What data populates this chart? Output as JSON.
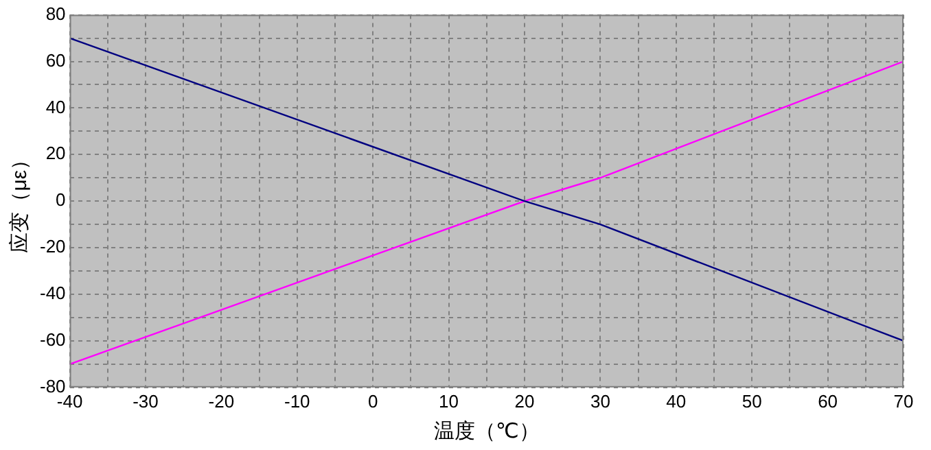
{
  "chart_data": {
    "type": "line",
    "xlabel": "温度（℃）",
    "ylabel": "应变（με）",
    "xlim": [
      -40,
      70
    ],
    "ylim": [
      -80,
      80
    ],
    "xticks": [
      -40,
      {
        "value": -35,
        "label": null
      },
      -30,
      {
        "value": -25,
        "label": null
      },
      -20,
      {
        "value": -15,
        "label": null
      },
      -10,
      {
        "value": -5,
        "label": null
      },
      0,
      {
        "value": 5,
        "label": null
      },
      10,
      {
        "value": 15,
        "label": null
      },
      20,
      {
        "value": 25,
        "label": null
      },
      30,
      {
        "value": 35,
        "label": null
      },
      40,
      {
        "value": 45,
        "label": null
      },
      50,
      {
        "value": 55,
        "label": null
      },
      60,
      {
        "value": 65,
        "label": null
      },
      70
    ],
    "yticks": [
      -80,
      {
        "value": -70,
        "label": null
      },
      -60,
      {
        "value": -50,
        "label": null
      },
      -40,
      {
        "value": -30,
        "label": null
      },
      -20,
      {
        "value": -10,
        "label": null
      },
      0,
      {
        "value": 10,
        "label": null
      },
      20,
      {
        "value": 30,
        "label": null
      },
      40,
      {
        "value": 50,
        "label": null
      },
      60,
      {
        "value": 70,
        "label": null
      },
      80
    ],
    "grid": true,
    "legend": false,
    "marker": "none",
    "line_style": "solid",
    "series": [
      {
        "color": "#000080",
        "x": [
          -40,
          20,
          30,
          70
        ],
        "values": [
          70,
          0,
          -10,
          -60
        ]
      },
      {
        "color": "#ff00ff",
        "x": [
          -40,
          20,
          30,
          70
        ],
        "values": [
          -70,
          0,
          10,
          60
        ]
      }
    ]
  }
}
